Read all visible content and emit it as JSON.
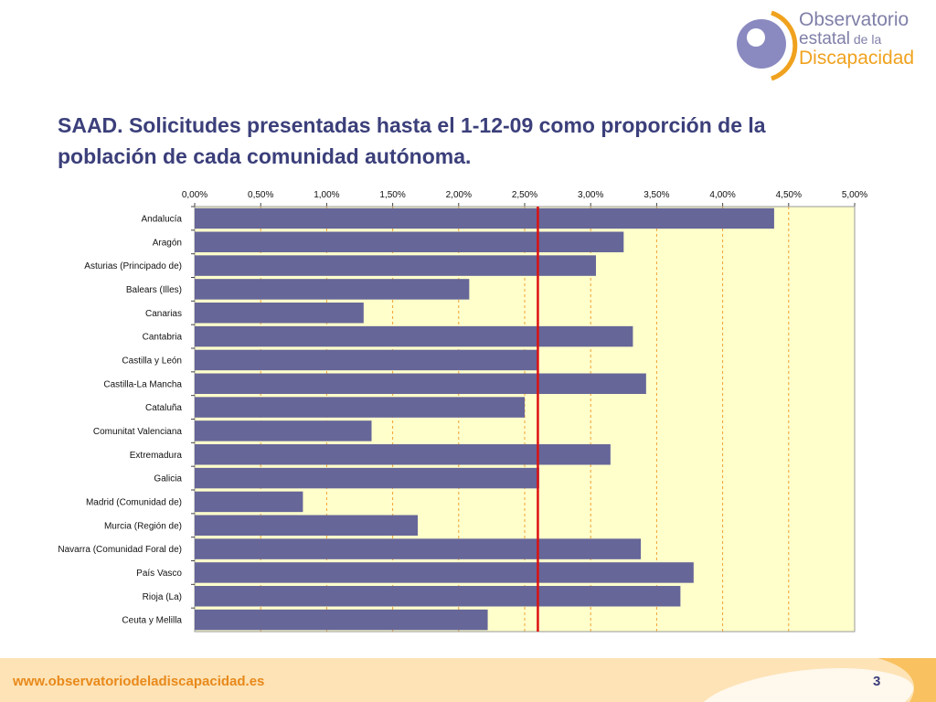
{
  "logo": {
    "line1": "Observatorio",
    "line2_main": "estatal",
    "line2_small": " de la",
    "line3": "Discapacidad"
  },
  "title": "SAAD. Solicitudes presentadas hasta el 1-12-09 como proporción de la población de cada comunidad autónoma.",
  "footer": {
    "url": "www.observatoriodeladiscapacidad.es",
    "page": "3"
  },
  "colors": {
    "bar": "#666699",
    "plot_background": "#ffffcc",
    "gridline": "#f0a030",
    "reference_line": "#dd1111",
    "title": "#3b3f7a",
    "accent": "#f0a21e"
  },
  "chart_data": {
    "type": "bar",
    "orientation": "horizontal",
    "categories": [
      "Andalucía",
      "Aragón",
      "Asturias (Principado de)",
      "Balears (Illes)",
      "Canarias",
      "Cantabria",
      "Castilla y León",
      "Castilla-La Mancha",
      "Cataluña",
      "Comunitat Valenciana",
      "Extremadura",
      "Galicia",
      "Madrid (Comunidad de)",
      "Murcia (Región de)",
      "Navarra (Comunidad Foral de)",
      "País Vasco",
      "Rioja (La)",
      "Ceuta y Melilla"
    ],
    "values": [
      4.39,
      3.25,
      3.04,
      2.08,
      1.28,
      3.32,
      2.6,
      3.42,
      2.5,
      1.34,
      3.15,
      2.61,
      0.82,
      1.69,
      3.38,
      3.78,
      3.68,
      2.22
    ],
    "reference_value": 2.6,
    "xlim": [
      0,
      5
    ],
    "xticks": [
      "0,00%",
      "0,50%",
      "1,00%",
      "1,50%",
      "2,00%",
      "2,50%",
      "3,00%",
      "3,50%",
      "4,00%",
      "4,50%",
      "5,00%"
    ],
    "axis_position": "top",
    "grid": true
  }
}
